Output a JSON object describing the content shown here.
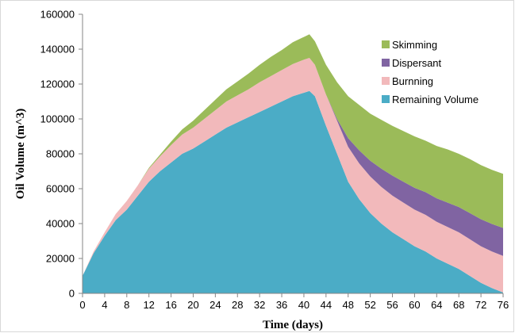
{
  "chart_data": {
    "type": "area",
    "stacked": true,
    "xlabel": "Time (days)",
    "ylabel": "Oil Volume (m^3)",
    "xlim": [
      0,
      76
    ],
    "ylim": [
      0,
      160000
    ],
    "x_ticks": [
      0,
      4,
      8,
      12,
      16,
      20,
      24,
      28,
      32,
      36,
      40,
      44,
      48,
      52,
      56,
      60,
      64,
      68,
      72,
      76
    ],
    "y_ticks": [
      0,
      20000,
      40000,
      60000,
      80000,
      100000,
      120000,
      140000,
      160000
    ],
    "grid": false,
    "legend_position": "top-right",
    "x": [
      0,
      2,
      4,
      6,
      8,
      10,
      12,
      14,
      16,
      18,
      20,
      22,
      24,
      26,
      28,
      30,
      32,
      34,
      36,
      38,
      40,
      41,
      42,
      44,
      46,
      48,
      50,
      52,
      54,
      56,
      58,
      60,
      62,
      64,
      66,
      68,
      70,
      72,
      74,
      76
    ],
    "series": [
      {
        "name": "Remaining Volume",
        "color": "#4bacc6",
        "values": [
          10000,
          23000,
          33000,
          42000,
          48000,
          56000,
          64000,
          70000,
          75000,
          80000,
          83000,
          87000,
          91000,
          95000,
          98000,
          101000,
          104000,
          107000,
          110000,
          113000,
          115000,
          116000,
          113000,
          96000,
          80000,
          64000,
          54000,
          46000,
          40000,
          35000,
          31000,
          27000,
          24000,
          20000,
          17000,
          14000,
          10000,
          6000,
          3000,
          500
        ]
      },
      {
        "name": "Burnning",
        "color": "#f2b9bb",
        "values": [
          0,
          1000,
          2000,
          3500,
          5000,
          6000,
          7500,
          8500,
          10000,
          11000,
          12000,
          13000,
          14000,
          15000,
          15500,
          16000,
          17000,
          17500,
          18000,
          18500,
          19000,
          19000,
          18000,
          18000,
          19000,
          20000,
          20500,
          21000,
          21000,
          21000,
          21000,
          21000,
          21000,
          21000,
          21000,
          21000,
          21000,
          21000,
          21000,
          21000
        ]
      },
      {
        "name": "Dispersant",
        "color": "#8064a2",
        "values": [
          0,
          0,
          0,
          0,
          0,
          0,
          0,
          0,
          0,
          0,
          0,
          0,
          0,
          0,
          0,
          0,
          0,
          0,
          0,
          0,
          0,
          0,
          0,
          0,
          1000,
          5000,
          7500,
          9000,
          10500,
          11500,
          12000,
          12500,
          13000,
          13500,
          14000,
          14500,
          15000,
          15500,
          15800,
          16000
        ]
      },
      {
        "name": "Skimming",
        "color": "#9bbb59",
        "values": [
          0,
          0,
          0,
          0,
          0,
          0,
          500,
          1000,
          2000,
          3000,
          4000,
          5000,
          6000,
          7000,
          8000,
          9000,
          10000,
          11000,
          11500,
          12500,
          13000,
          13500,
          13500,
          17000,
          21000,
          24000,
          26000,
          27000,
          28000,
          28500,
          29000,
          29500,
          29500,
          30000,
          30500,
          30500,
          31000,
          31000,
          31000,
          31000
        ]
      }
    ],
    "legend_order": [
      "Skimming",
      "Dispersant",
      "Burnning",
      "Remaining Volume"
    ]
  }
}
